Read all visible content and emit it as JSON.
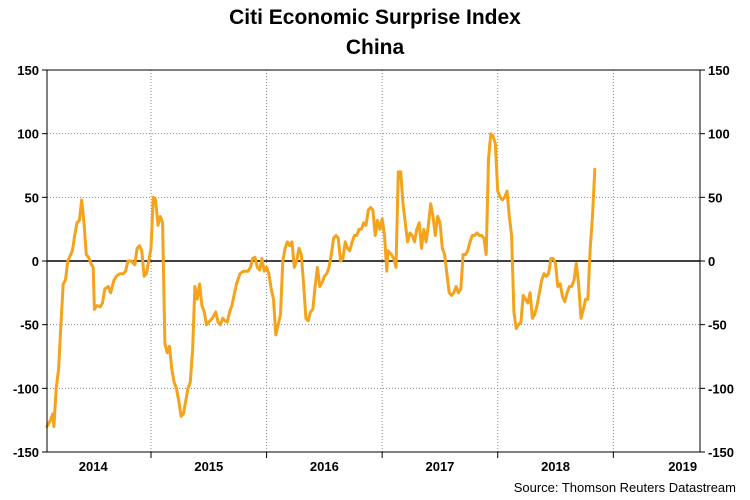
{
  "chart_data": {
    "type": "line",
    "title": "Citi Economic Surprise Index",
    "subtitle": "China",
    "source": "Source: Thomson Reuters Datastream",
    "ylim": [
      -150,
      150
    ],
    "y_ticks": [
      "150",
      "100",
      "50",
      "0",
      "-50",
      "-100",
      "-150"
    ],
    "y_tick_values": [
      150,
      100,
      50,
      0,
      -50,
      -100,
      -150
    ],
    "y_axis_both_sides": true,
    "x_range": [
      2013.6,
      2019.25
    ],
    "x_tick_labels": [
      "2014",
      "2015",
      "2016",
      "2017",
      "2018",
      "2019"
    ],
    "x_label_positions": [
      2014.0,
      2015.0,
      2016.0,
      2017.0,
      2018.0,
      2019.1
    ],
    "year_boundaries": [
      2014.5,
      2015.5,
      2016.5,
      2017.5,
      2018.5
    ],
    "grid": "dotted",
    "zero_line": true,
    "series": [
      {
        "color": "#F5A31A",
        "points": [
          [
            2013.6,
            -130
          ],
          [
            2013.63,
            -125
          ],
          [
            2013.65,
            -120
          ],
          [
            2013.66,
            -130
          ],
          [
            2013.68,
            -100
          ],
          [
            2013.7,
            -85
          ],
          [
            2013.72,
            -50
          ],
          [
            2013.74,
            -18
          ],
          [
            2013.76,
            -15
          ],
          [
            2013.78,
            0
          ],
          [
            2013.82,
            8
          ],
          [
            2013.84,
            20
          ],
          [
            2013.86,
            30
          ],
          [
            2013.88,
            32
          ],
          [
            2013.9,
            48
          ],
          [
            2013.92,
            30
          ],
          [
            2013.94,
            5
          ],
          [
            2013.96,
            3
          ],
          [
            2013.98,
            -2
          ],
          [
            2014.0,
            -5
          ],
          [
            2014.01,
            -38
          ],
          [
            2014.03,
            -35
          ],
          [
            2014.06,
            -36
          ],
          [
            2014.08,
            -33
          ],
          [
            2014.1,
            -22
          ],
          [
            2014.13,
            -20
          ],
          [
            2014.15,
            -25
          ],
          [
            2014.18,
            -15
          ],
          [
            2014.2,
            -12
          ],
          [
            2014.23,
            -10
          ],
          [
            2014.26,
            -10
          ],
          [
            2014.28,
            -8
          ],
          [
            2014.3,
            0
          ],
          [
            2014.33,
            0
          ],
          [
            2014.36,
            -3
          ],
          [
            2014.38,
            10
          ],
          [
            2014.4,
            12
          ],
          [
            2014.42,
            8
          ],
          [
            2014.44,
            -12
          ],
          [
            2014.46,
            -10
          ],
          [
            2014.48,
            0
          ],
          [
            2014.5,
            10
          ],
          [
            2014.52,
            50
          ],
          [
            2014.54,
            48
          ],
          [
            2014.56,
            28
          ],
          [
            2014.58,
            35
          ],
          [
            2014.6,
            30
          ],
          [
            2014.62,
            -65
          ],
          [
            2014.64,
            -72
          ],
          [
            2014.66,
            -67
          ],
          [
            2014.68,
            -85
          ],
          [
            2014.7,
            -95
          ],
          [
            2014.72,
            -100
          ],
          [
            2014.74,
            -110
          ],
          [
            2014.76,
            -122
          ],
          [
            2014.78,
            -120
          ],
          [
            2014.8,
            -110
          ],
          [
            2014.82,
            -100
          ],
          [
            2014.84,
            -95
          ],
          [
            2014.86,
            -70
          ],
          [
            2014.88,
            -20
          ],
          [
            2014.9,
            -30
          ],
          [
            2014.92,
            -18
          ],
          [
            2014.94,
            -35
          ],
          [
            2014.96,
            -40
          ],
          [
            2014.98,
            -50
          ],
          [
            2015.0,
            -48
          ],
          [
            2015.03,
            -45
          ],
          [
            2015.06,
            -40
          ],
          [
            2015.08,
            -48
          ],
          [
            2015.1,
            -50
          ],
          [
            2015.12,
            -45
          ],
          [
            2015.14,
            -47
          ],
          [
            2015.16,
            -48
          ],
          [
            2015.18,
            -40
          ],
          [
            2015.2,
            -35
          ],
          [
            2015.24,
            -18
          ],
          [
            2015.27,
            -10
          ],
          [
            2015.3,
            -8
          ],
          [
            2015.34,
            -8
          ],
          [
            2015.36,
            -5
          ],
          [
            2015.38,
            2
          ],
          [
            2015.4,
            3
          ],
          [
            2015.42,
            -5
          ],
          [
            2015.44,
            -7
          ],
          [
            2015.46,
            2
          ],
          [
            2015.48,
            -8
          ],
          [
            2015.5,
            -5
          ],
          [
            2015.52,
            -10
          ],
          [
            2015.54,
            -22
          ],
          [
            2015.56,
            -30
          ],
          [
            2015.58,
            -58
          ],
          [
            2015.6,
            -50
          ],
          [
            2015.62,
            -42
          ],
          [
            2015.64,
            0
          ],
          [
            2015.66,
            10
          ],
          [
            2015.68,
            15
          ],
          [
            2015.7,
            12
          ],
          [
            2015.72,
            15
          ],
          [
            2015.74,
            -5
          ],
          [
            2015.76,
            0
          ],
          [
            2015.78,
            10
          ],
          [
            2015.8,
            5
          ],
          [
            2015.82,
            -18
          ],
          [
            2015.84,
            -45
          ],
          [
            2015.86,
            -47
          ],
          [
            2015.88,
            -40
          ],
          [
            2015.9,
            -38
          ],
          [
            2015.92,
            -20
          ],
          [
            2015.94,
            -5
          ],
          [
            2015.96,
            -20
          ],
          [
            2015.98,
            -17
          ],
          [
            2016.0,
            -12
          ],
          [
            2016.02,
            -10
          ],
          [
            2016.04,
            -5
          ],
          [
            2016.06,
            5
          ],
          [
            2016.08,
            18
          ],
          [
            2016.1,
            20
          ],
          [
            2016.12,
            18
          ],
          [
            2016.14,
            0
          ],
          [
            2016.16,
            2
          ],
          [
            2016.18,
            15
          ],
          [
            2016.2,
            10
          ],
          [
            2016.22,
            8
          ],
          [
            2016.24,
            15
          ],
          [
            2016.26,
            20
          ],
          [
            2016.28,
            20
          ],
          [
            2016.3,
            25
          ],
          [
            2016.32,
            25
          ],
          [
            2016.34,
            30
          ],
          [
            2016.36,
            28
          ],
          [
            2016.38,
            40
          ],
          [
            2016.4,
            42
          ],
          [
            2016.42,
            40
          ],
          [
            2016.44,
            20
          ],
          [
            2016.46,
            32
          ],
          [
            2016.48,
            25
          ],
          [
            2016.5,
            33
          ],
          [
            2016.52,
            20
          ],
          [
            2016.54,
            -8
          ],
          [
            2016.55,
            8
          ],
          [
            2016.58,
            5
          ],
          [
            2016.6,
            2
          ],
          [
            2016.62,
            -5
          ],
          [
            2016.64,
            70
          ],
          [
            2016.66,
            70
          ],
          [
            2016.68,
            45
          ],
          [
            2016.7,
            30
          ],
          [
            2016.72,
            15
          ],
          [
            2016.74,
            22
          ],
          [
            2016.76,
            20
          ],
          [
            2016.78,
            15
          ],
          [
            2016.8,
            25
          ],
          [
            2016.82,
            30
          ],
          [
            2016.84,
            10
          ],
          [
            2016.86,
            25
          ],
          [
            2016.88,
            15
          ],
          [
            2016.9,
            28
          ],
          [
            2016.92,
            45
          ],
          [
            2016.94,
            35
          ],
          [
            2016.96,
            20
          ],
          [
            2016.98,
            35
          ],
          [
            2017.0,
            30
          ],
          [
            2017.02,
            10
          ],
          [
            2017.04,
            5
          ],
          [
            2017.06,
            -10
          ],
          [
            2017.08,
            -25
          ],
          [
            2017.1,
            -27
          ],
          [
            2017.12,
            -25
          ],
          [
            2017.14,
            -20
          ],
          [
            2017.16,
            -25
          ],
          [
            2017.18,
            -22
          ],
          [
            2017.2,
            5
          ],
          [
            2017.22,
            5
          ],
          [
            2017.24,
            8
          ],
          [
            2017.26,
            15
          ],
          [
            2017.28,
            20
          ],
          [
            2017.3,
            20
          ],
          [
            2017.32,
            22
          ],
          [
            2017.34,
            20
          ],
          [
            2017.36,
            20
          ],
          [
            2017.38,
            18
          ],
          [
            2017.4,
            5
          ],
          [
            2017.42,
            80
          ],
          [
            2017.44,
            100
          ],
          [
            2017.46,
            98
          ],
          [
            2017.48,
            92
          ],
          [
            2017.5,
            55
          ],
          [
            2017.52,
            50
          ],
          [
            2017.54,
            48
          ],
          [
            2017.56,
            50
          ],
          [
            2017.58,
            55
          ],
          [
            2017.6,
            35
          ],
          [
            2017.62,
            20
          ],
          [
            2017.64,
            -40
          ],
          [
            2017.66,
            -53
          ],
          [
            2017.68,
            -50
          ],
          [
            2017.7,
            -48
          ],
          [
            2017.72,
            -27
          ],
          [
            2017.74,
            -30
          ],
          [
            2017.76,
            -33
          ],
          [
            2017.78,
            -25
          ],
          [
            2017.8,
            -45
          ],
          [
            2017.82,
            -42
          ],
          [
            2017.84,
            -35
          ],
          [
            2017.86,
            -25
          ],
          [
            2017.88,
            -15
          ],
          [
            2017.9,
            -10
          ],
          [
            2017.92,
            -12
          ],
          [
            2017.94,
            -10
          ],
          [
            2017.96,
            2
          ],
          [
            2017.98,
            2
          ],
          [
            2018.0,
            -2
          ],
          [
            2018.02,
            -20
          ],
          [
            2018.04,
            -18
          ],
          [
            2018.06,
            -28
          ],
          [
            2018.08,
            -32
          ],
          [
            2018.1,
            -25
          ],
          [
            2018.12,
            -20
          ],
          [
            2018.14,
            -20
          ],
          [
            2018.16,
            -15
          ],
          [
            2018.18,
            -2
          ],
          [
            2018.2,
            -18
          ],
          [
            2018.22,
            -45
          ],
          [
            2018.24,
            -38
          ],
          [
            2018.26,
            -30
          ],
          [
            2018.28,
            -30
          ],
          [
            2018.3,
            10
          ],
          [
            2018.32,
            35
          ],
          [
            2018.34,
            72
          ]
        ]
      }
    ]
  }
}
